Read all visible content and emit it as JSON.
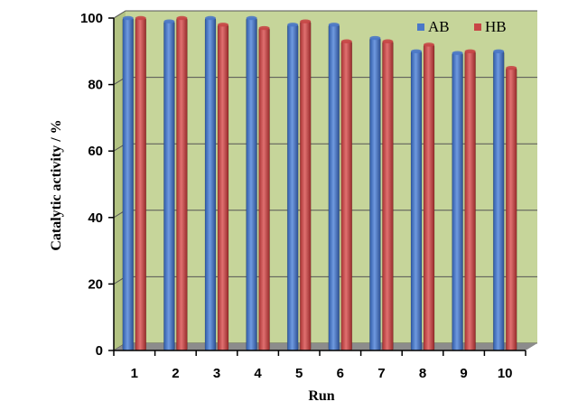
{
  "chart_data": {
    "type": "bar",
    "categories": [
      "1",
      "2",
      "3",
      "4",
      "5",
      "6",
      "7",
      "8",
      "9",
      "10"
    ],
    "series": [
      {
        "name": "AB",
        "values": [
          100,
          99,
          100,
          100,
          98,
          98,
          94,
          90,
          89.5,
          90
        ],
        "color": "#4a78c8"
      },
      {
        "name": "HB",
        "values": [
          100,
          100,
          98,
          97,
          99,
          93,
          93,
          92,
          90,
          85
        ],
        "color": "#c84646"
      }
    ],
    "title": "",
    "xlabel": "Run",
    "ylabel": "Catalytic activity / %",
    "ylim": [
      0,
      100
    ],
    "yticks": [
      0,
      20,
      40,
      60,
      80,
      100
    ],
    "grid": true,
    "legend": "top-right",
    "plot_background": "#c6d59a",
    "floor_color": "#8c8c8c"
  }
}
